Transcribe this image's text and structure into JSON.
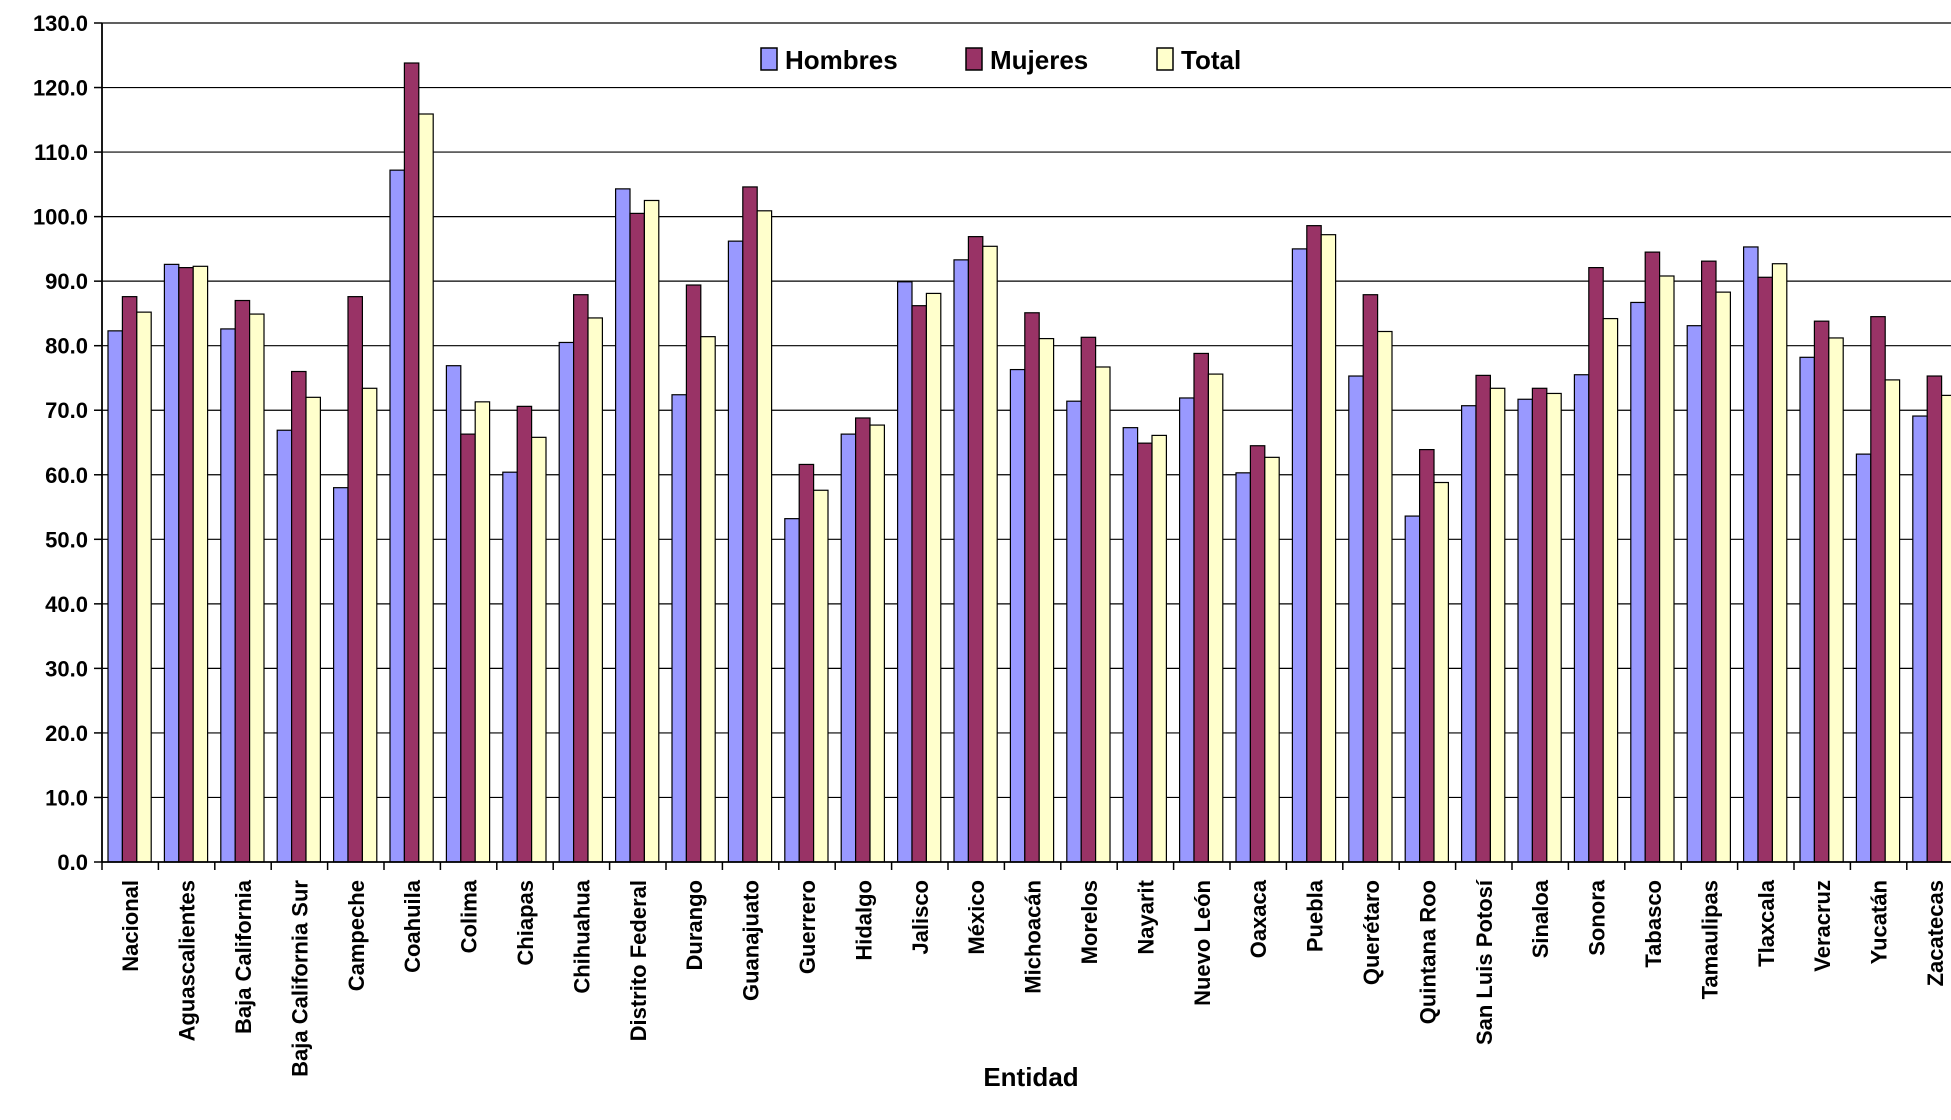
{
  "chart_data": {
    "type": "bar",
    "title": "",
    "xlabel": "Entidad",
    "ylabel": "",
    "ylim": [
      0,
      130
    ],
    "ytick_step": 10,
    "ytick_labels": [
      "0.0",
      "10.0",
      "20.0",
      "30.0",
      "40.0",
      "50.0",
      "60.0",
      "70.0",
      "80.0",
      "90.0",
      "100.0",
      "110.0",
      "120.0",
      "130.0"
    ],
    "grid": true,
    "legend_position": "top-center",
    "categories": [
      "Nacional",
      "Aguascalientes",
      "Baja California",
      "Baja California Sur",
      "Campeche",
      "Coahuila",
      "Colima",
      "Chiapas",
      "Chihuahua",
      "Distrito Federal",
      "Durango",
      "Guanajuato",
      "Guerrero",
      "Hidalgo",
      "Jalisco",
      "México",
      "Michoacán",
      "Morelos",
      "Nayarit",
      "Nuevo León",
      "Oaxaca",
      "Puebla",
      "Querétaro",
      "Quintana Roo",
      "San Luis Potosí",
      "Sinaloa",
      "Sonora",
      "Tabasco",
      "Tamaulipas",
      "Tlaxcala",
      "Veracruz",
      "Yucatán",
      "Zacatecas"
    ],
    "series": [
      {
        "name": "Hombres",
        "color": "#9999ff",
        "values": [
          82.3,
          92.6,
          82.6,
          66.9,
          58.0,
          107.2,
          76.9,
          60.4,
          80.5,
          104.3,
          72.4,
          96.2,
          53.2,
          66.3,
          89.9,
          93.3,
          76.3,
          71.4,
          67.3,
          71.9,
          60.3,
          95.0,
          75.3,
          53.6,
          70.7,
          71.7,
          75.5,
          86.7,
          83.1,
          95.3,
          78.2,
          63.2,
          69.1
        ]
      },
      {
        "name": "Mujeres",
        "color": "#993366",
        "values": [
          87.6,
          92.1,
          87.0,
          76.0,
          87.6,
          123.8,
          66.3,
          70.6,
          87.9,
          100.5,
          89.4,
          104.6,
          61.6,
          68.8,
          86.2,
          96.9,
          85.1,
          81.3,
          64.9,
          78.8,
          64.5,
          98.6,
          87.9,
          63.9,
          75.4,
          73.4,
          92.1,
          94.5,
          93.1,
          90.6,
          83.8,
          84.5,
          75.3
        ]
      },
      {
        "name": "Total",
        "color": "#ffffcc",
        "values": [
          85.2,
          92.3,
          84.9,
          72.0,
          73.4,
          115.9,
          71.3,
          65.8,
          84.3,
          102.5,
          81.4,
          100.9,
          57.6,
          67.7,
          88.1,
          95.4,
          81.1,
          76.7,
          66.1,
          75.6,
          62.7,
          97.2,
          82.2,
          58.8,
          73.4,
          72.6,
          84.2,
          90.8,
          88.3,
          92.7,
          81.2,
          74.7,
          72.3
        ]
      }
    ]
  }
}
